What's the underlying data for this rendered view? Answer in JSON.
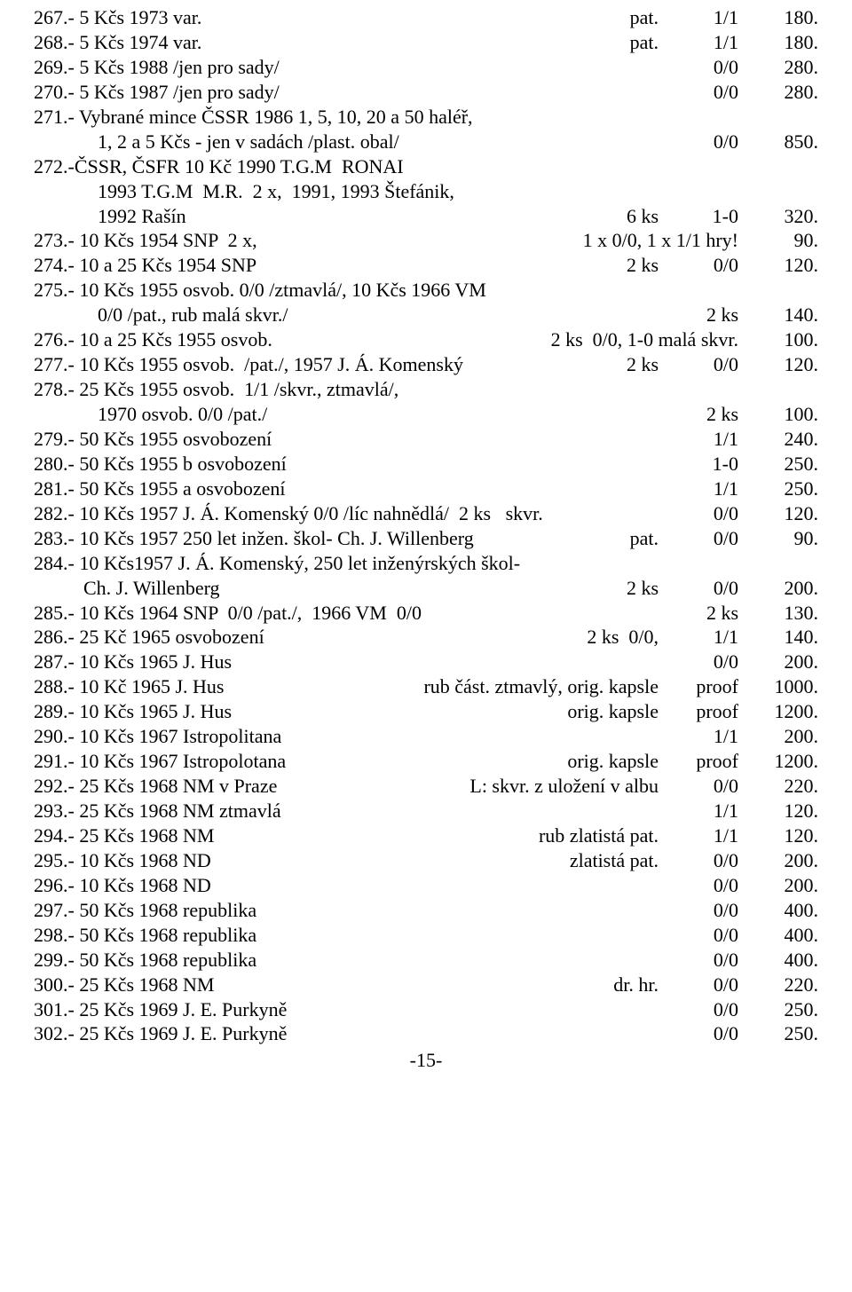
{
  "page_number": "-15-",
  "rows": [
    {
      "left": "267.- 5 Kčs 1973 var.",
      "mid": "pat.",
      "grade": "1/1",
      "price": "180."
    },
    {
      "left": "268.- 5 Kčs 1974 var.",
      "mid": "pat.",
      "grade": "1/1",
      "price": "180."
    },
    {
      "left": "269.- 5 Kčs 1988 /jen pro sady/",
      "mid": "",
      "grade": "0/0",
      "price": "280."
    },
    {
      "left": "270.- 5 Kčs 1987 /jen pro sady/",
      "mid": "",
      "grade": "0/0",
      "price": "280."
    },
    {
      "left": "271.- Vybrané mince ČSSR 1986 1, 5, 10, 20 a 50 haléř,",
      "mid": "",
      "grade": "",
      "price": ""
    },
    {
      "left": "1, 2 a 5 Kčs - jen v sadách /plast. obal/",
      "mid": "",
      "grade": "0/0",
      "price": "850.",
      "indent": "indent1"
    },
    {
      "left": "272.-ČSSR, ČSFR 10 Kč 1990 T.G.M  RONAI",
      "mid": "",
      "grade": "",
      "price": ""
    },
    {
      "left": "1993 T.G.M  M.R.  2 x,  1991, 1993 Štefánik,",
      "mid": "",
      "grade": "",
      "price": "",
      "indent": "indent1"
    },
    {
      "left": "1992 Rašín",
      "mid": "6 ks",
      "grade": "1-0",
      "price": "320.",
      "indent": "indent1"
    },
    {
      "left": "273.- 10 Kčs 1954 SNP  2 x,",
      "mid": "1 x 0/0, 1 x 1/1 hry!",
      "grade": "",
      "price": "90."
    },
    {
      "left": "274.- 10 a 25 Kčs 1954 SNP",
      "mid": "2 ks",
      "grade": "0/0",
      "price": "120."
    },
    {
      "left": "275.- 10 Kčs 1955 osvob. 0/0 /ztmavlá/, 10 Kčs 1966 VM",
      "mid": "",
      "grade": "",
      "price": ""
    },
    {
      "left": "0/0 /pat., rub malá skvr./",
      "mid": "",
      "grade": "2 ks",
      "price": "140.",
      "indent": "indent1"
    },
    {
      "left": "276.- 10 a 25 Kčs 1955 osvob.",
      "mid": "2 ks  0/0, 1-0 malá skvr.",
      "grade": "",
      "price": "100."
    },
    {
      "left": "277.- 10 Kčs 1955 osvob.  /pat./, 1957 J. Á. Komenský",
      "mid": "2 ks",
      "grade": "0/0",
      "price": "120."
    },
    {
      "left": "278.- 25 Kčs 1955 osvob.  1/1 /skvr., ztmavlá/,",
      "mid": "",
      "grade": "",
      "price": ""
    },
    {
      "left": "1970 osvob. 0/0 /pat./",
      "mid": "",
      "grade": "2 ks",
      "price": "100.",
      "indent": "indent1"
    },
    {
      "left": "279.- 50 Kčs 1955 osvobození",
      "mid": "",
      "grade": "1/1",
      "price": "240."
    },
    {
      "left": "280.- 50 Kčs 1955 b osvobození",
      "mid": "",
      "grade": "1-0",
      "price": "250."
    },
    {
      "left": "281.- 50 Kčs 1955 a osvobození",
      "mid": "",
      "grade": "1/1",
      "price": "250."
    },
    {
      "left": "282.- 10 Kčs 1957 J. Á. Komenský 0/0 /líc nahnědlá/  2 ks   skvr.",
      "mid": "",
      "grade": "0/0",
      "price": "120."
    },
    {
      "left": "283.- 10 Kčs 1957 250 let inžen. škol- Ch. J. Willenberg",
      "mid": "pat.",
      "grade": "0/0",
      "price": "90."
    },
    {
      "left": "284.- 10 Kčs1957 J. Á. Komenský, 250 let inženýrských škol-",
      "mid": "",
      "grade": "",
      "price": ""
    },
    {
      "left": "Ch. J. Willenberg",
      "mid": "2 ks",
      "grade": "0/0",
      "price": "200.",
      "indent": "indent2"
    },
    {
      "left": "285.- 10 Kčs 1964 SNP  0/0 /pat./,  1966 VM  0/0",
      "mid": "2 ks",
      "grade": "",
      "price": "130."
    },
    {
      "left": "286.- 25 Kč 1965 osvobození",
      "mid": "2 ks  0/0,",
      "grade": "1/1",
      "price": "140."
    },
    {
      "left": "287.- 10 Kčs 1965 J. Hus",
      "mid": "",
      "grade": "0/0",
      "price": "200."
    },
    {
      "left": "288.- 10 Kč 1965 J. Hus",
      "mid": "rub část. ztmavlý, orig. kapsle",
      "grade": "proof",
      "price": "1000."
    },
    {
      "left": "289.- 10 Kčs 1965 J. Hus",
      "mid": "orig. kapsle",
      "grade": "proof",
      "price": "1200."
    },
    {
      "left": "290.- 10 Kčs 1967 Istropolitana",
      "mid": "",
      "grade": "1/1",
      "price": "200."
    },
    {
      "left": "291.- 10 Kčs 1967 Istropolotana",
      "mid": "orig. kapsle",
      "grade": "proof",
      "price": "1200."
    },
    {
      "left": "292.- 25 Kčs 1968 NM v Praze",
      "mid": "L: skvr. z uložení v albu",
      "grade": "0/0",
      "price": "220."
    },
    {
      "left": "293.- 25 Kčs 1968 NM ztmavlá",
      "mid": "",
      "grade": "1/1",
      "price": "120."
    },
    {
      "left": "294.- 25 Kčs 1968 NM",
      "mid": "rub zlatistá pat.",
      "grade": "1/1",
      "price": "120."
    },
    {
      "left": "295.- 10 Kčs 1968 ND",
      "mid": "zlatistá pat.",
      "grade": "0/0",
      "price": "200."
    },
    {
      "left": "296.- 10 Kčs 1968 ND",
      "mid": "",
      "grade": "0/0",
      "price": "200."
    },
    {
      "left": "297.- 50 Kčs 1968 republika",
      "mid": "",
      "grade": "0/0",
      "price": "400."
    },
    {
      "left": "298.- 50 Kčs 1968 republika",
      "mid": "",
      "grade": "0/0",
      "price": "400."
    },
    {
      "left": "299.- 50 Kčs 1968 republika",
      "mid": "",
      "grade": "0/0",
      "price": "400."
    },
    {
      "left": "300.- 25 Kčs 1968 NM",
      "mid": "dr. hr.",
      "grade": "0/0",
      "price": "220."
    },
    {
      "left": "301.- 25 Kčs 1969 J. E. Purkyně",
      "mid": "",
      "grade": "0/0",
      "price": "250."
    },
    {
      "left": "302.- 25 Kčs 1969 J. E. Purkyně",
      "mid": "",
      "grade": "0/0",
      "price": "250."
    }
  ]
}
